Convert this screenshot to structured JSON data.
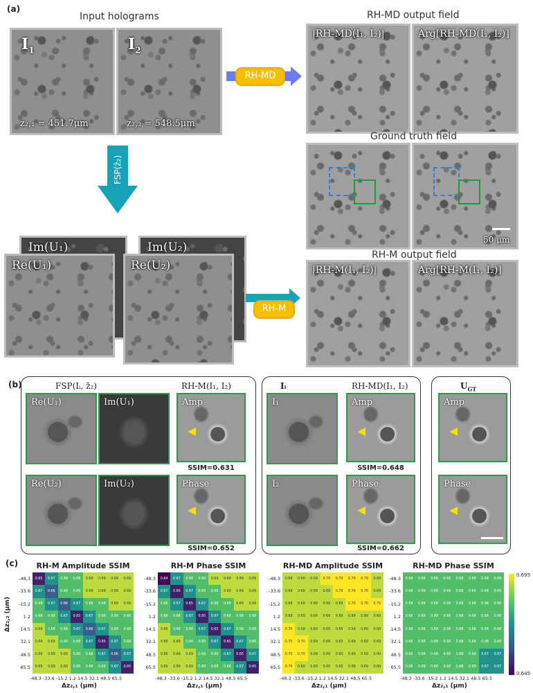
{
  "panel_a": {
    "label": "(a)",
    "input_title": "Input holograms",
    "i1": "I",
    "i1_sub": "1",
    "i2": "I",
    "i2_sub": "2",
    "z1": "z₂,₁ = 451.7μm",
    "z2": "z₂,₂ = 548.5μm",
    "rhmd_pill": "RH-MD",
    "rhmd_title": "RH-MD output field",
    "rhmd_amp": "|RH-MD(I₁, I₂)|",
    "rhmd_phase": "Arg[RH-MD(I₁, I₂)]",
    "gt_title": "Ground truth field",
    "scalebar": "50 μm",
    "fsp": "FSP(z̄₂)",
    "im1": "Im(U₁)",
    "im2": "Im(U₂)",
    "re1": "Re(U₁)",
    "re2": "Re(U₂)",
    "rhm_pill": "RH-M",
    "rhm_title": "RH-M output field",
    "rhm_amp": "|RH-M(I₁, I₂)|",
    "rhm_phase": "Arg[RH-M(I₁, I₂)]"
  },
  "panel_b": {
    "label": "(b)",
    "fsp_title": "FSP(Iᵢ, z̄₂)",
    "rhm_title": "RH-M(I₁, I₂)",
    "ii_title": "Iᵢ",
    "rhmd_title": "RH-MD(I₁, I₂)",
    "ugt_title": "U",
    "ugt_sub": "GT",
    "re1": "Re(U₁)",
    "im1": "Im(U₁)",
    "re2": "Re(U₂)",
    "im2": "Im(U₂)",
    "i1": "I₁",
    "i2": "I₂",
    "amp": "Amp",
    "phase": "Phase",
    "ssim_rhm_amp": "SSIM=0.631",
    "ssim_rhm_phase": "SSIM=0.652",
    "ssim_rhmd_amp": "SSIM=0.648",
    "ssim_rhmd_phase": "SSIM=0.662"
  },
  "panel_c": {
    "label": "(c)",
    "ylabel": "Δz₂,₂ (μm)",
    "xlabel": "Δz₂,₁ (μm)",
    "ticks": [
      "-48.3",
      "-33.6",
      "-15.2",
      "1.2",
      "14.5",
      "32.1",
      "48.5",
      "65.5"
    ],
    "colorbar_max": "0.695",
    "colorbar_min": "0.645",
    "colors": {
      "low": "#3b0f70",
      "mid": "#21918c",
      "high": "#fde725"
    }
  },
  "chart_data": [
    {
      "type": "heatmap",
      "title": "RH-M Amplitude SSIM",
      "x": [
        "-48.3",
        "-33.6",
        "-15.2",
        "1.2",
        "14.5",
        "32.1",
        "48.5",
        "65.5"
      ],
      "y": [
        "-48.3",
        "-33.6",
        "-15.2",
        "1.2",
        "14.5",
        "32.1",
        "48.5",
        "65.5"
      ],
      "xlabel": "Δz₂,₁ (μm)",
      "ylabel": "Δz₂,₂ (μm)",
      "values": [
        [
          0.65,
          0.67,
          0.68,
          0.68,
          0.69,
          0.69,
          0.69,
          0.69
        ],
        [
          0.67,
          0.66,
          0.68,
          0.68,
          0.69,
          0.69,
          0.69,
          0.69
        ],
        [
          0.68,
          0.67,
          0.66,
          0.67,
          0.68,
          0.68,
          0.69,
          0.69
        ],
        [
          0.68,
          0.68,
          0.67,
          0.65,
          0.67,
          0.68,
          0.68,
          0.68
        ],
        [
          0.69,
          0.68,
          0.68,
          0.67,
          0.66,
          0.67,
          0.68,
          0.68
        ],
        [
          0.69,
          0.69,
          0.68,
          0.68,
          0.67,
          0.65,
          0.67,
          0.68
        ],
        [
          0.69,
          0.69,
          0.69,
          0.68,
          0.68,
          0.67,
          0.66,
          0.67
        ],
        [
          0.69,
          0.69,
          0.69,
          0.68,
          0.68,
          0.68,
          0.67,
          0.65
        ]
      ]
    },
    {
      "type": "heatmap",
      "title": "RH-M Phase SSIM",
      "x": [
        "-48.3",
        "-33.6",
        "-15.2",
        "1.2",
        "14.5",
        "32.1",
        "48.5",
        "65.5"
      ],
      "y": [
        "-48.3",
        "-33.6",
        "-15.2",
        "1.2",
        "14.5",
        "32.1",
        "48.5",
        "65.5"
      ],
      "xlabel": "Δz₂,₁ (μm)",
      "values": [
        [
          0.64,
          0.67,
          0.68,
          0.68,
          0.69,
          0.69,
          0.69,
          0.69
        ],
        [
          0.67,
          0.65,
          0.67,
          0.68,
          0.68,
          0.69,
          0.69,
          0.69
        ],
        [
          0.68,
          0.67,
          0.65,
          0.67,
          0.68,
          0.68,
          0.69,
          0.69
        ],
        [
          0.68,
          0.68,
          0.67,
          0.65,
          0.67,
          0.68,
          0.68,
          0.68
        ],
        [
          0.69,
          0.68,
          0.68,
          0.67,
          0.65,
          0.67,
          0.68,
          0.68
        ],
        [
          0.69,
          0.69,
          0.68,
          0.68,
          0.67,
          0.65,
          0.67,
          0.68
        ],
        [
          0.69,
          0.69,
          0.69,
          0.68,
          0.68,
          0.67,
          0.65,
          0.67
        ],
        [
          0.69,
          0.69,
          0.69,
          0.68,
          0.68,
          0.68,
          0.67,
          0.65
        ]
      ]
    },
    {
      "type": "heatmap",
      "title": "RH-MD Amplitude SSIM",
      "x": [
        "-48.3",
        "-33.6",
        "-15.2",
        "1.2",
        "14.5",
        "32.1",
        "48.5",
        "65.5"
      ],
      "y": [
        "-48.3",
        "-33.6",
        "-15.2",
        "1.2",
        "14.5",
        "32.1",
        "48.5",
        "65.5"
      ],
      "xlabel": "Δz₂,₁ (μm)",
      "values": [
        [
          0.69,
          0.69,
          0.69,
          0.7,
          0.7,
          0.7,
          0.7,
          0.69
        ],
        [
          0.69,
          0.69,
          0.69,
          0.69,
          0.7,
          0.7,
          0.7,
          0.69
        ],
        [
          0.69,
          0.69,
          0.69,
          0.69,
          0.69,
          0.7,
          0.7,
          0.7
        ],
        [
          0.69,
          0.69,
          0.69,
          0.69,
          0.69,
          0.69,
          0.69,
          0.69
        ],
        [
          0.7,
          0.69,
          0.69,
          0.69,
          0.69,
          0.69,
          0.69,
          0.69
        ],
        [
          0.7,
          0.7,
          0.69,
          0.69,
          0.69,
          0.69,
          0.69,
          0.69
        ],
        [
          0.7,
          0.7,
          0.69,
          0.69,
          0.69,
          0.69,
          0.69,
          0.69
        ],
        [
          0.7,
          0.69,
          0.69,
          0.69,
          0.69,
          0.69,
          0.69,
          0.69
        ]
      ]
    },
    {
      "type": "heatmap",
      "title": "RH-MD Phase SSIM",
      "x": [
        "-48.3",
        "-33.6",
        "-15.2",
        "1.2",
        "14.5",
        "32.1",
        "48.5",
        "65.5"
      ],
      "y": [
        "-48.3",
        "-33.6",
        "-15.2",
        "1.2",
        "14.5",
        "32.1",
        "48.5",
        "65.5"
      ],
      "xlabel": "Δz₂,₁ (μm)",
      "colorbar": [
        "0.645",
        "0.695"
      ],
      "values": [
        [
          0.68,
          0.68,
          0.68,
          0.68,
          0.68,
          0.68,
          0.68,
          0.68
        ],
        [
          0.68,
          0.68,
          0.68,
          0.68,
          0.68,
          0.68,
          0.68,
          0.68
        ],
        [
          0.68,
          0.68,
          0.68,
          0.68,
          0.68,
          0.68,
          0.68,
          0.68
        ],
        [
          0.68,
          0.68,
          0.68,
          0.68,
          0.68,
          0.68,
          0.68,
          0.68
        ],
        [
          0.68,
          0.68,
          0.68,
          0.68,
          0.68,
          0.68,
          0.68,
          0.68
        ],
        [
          0.68,
          0.68,
          0.68,
          0.68,
          0.68,
          0.68,
          0.68,
          0.68
        ],
        [
          0.68,
          0.68,
          0.68,
          0.68,
          0.68,
          0.68,
          0.67,
          0.67
        ],
        [
          0.68,
          0.68,
          0.68,
          0.68,
          0.68,
          0.68,
          0.67,
          0.67
        ]
      ]
    }
  ]
}
